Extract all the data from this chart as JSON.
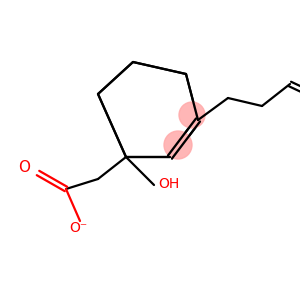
{
  "bg_color": "#ffffff",
  "line_color": "#000000",
  "red_color": "#ff0000",
  "pink_color": "#ffaaaa",
  "oh_text": "OH",
  "o_minus_text": "O⁻",
  "o_double_text": "O",
  "figsize": [
    3.0,
    3.0
  ],
  "dpi": 100
}
